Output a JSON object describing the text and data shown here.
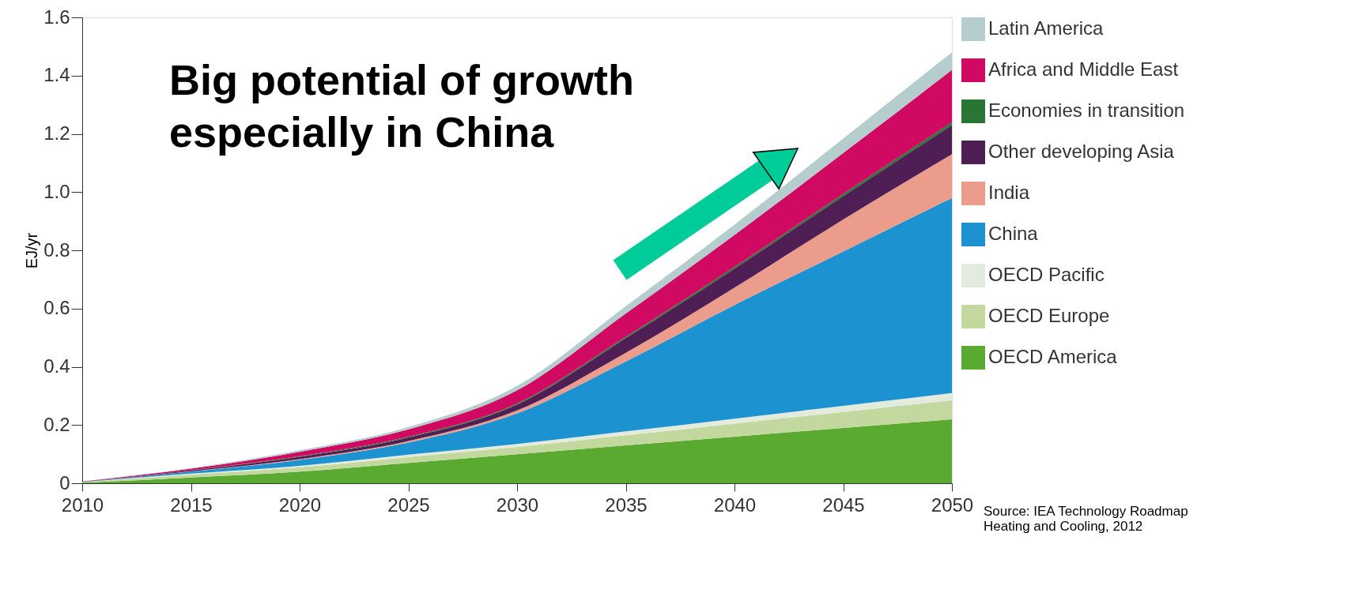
{
  "chart_data": {
    "type": "area",
    "stacked": true,
    "x": [
      2010,
      2015,
      2020,
      2025,
      2030,
      2035,
      2040,
      2045,
      2050
    ],
    "series": [
      {
        "name": "OECD America",
        "color": "#5aaa32",
        "values": [
          0.002,
          0.02,
          0.04,
          0.07,
          0.1,
          0.13,
          0.16,
          0.19,
          0.22
        ]
      },
      {
        "name": "OECD Europe",
        "color": "#c3d89e",
        "values": [
          0.002,
          0.01,
          0.015,
          0.02,
          0.025,
          0.035,
          0.045,
          0.055,
          0.065
        ]
      },
      {
        "name": "OECD Pacific",
        "color": "#e3ecdc",
        "values": [
          0,
          0.003,
          0.005,
          0.008,
          0.01,
          0.013,
          0.017,
          0.021,
          0.025
        ]
      },
      {
        "name": "China",
        "color": "#1c92d0",
        "values": [
          0.001,
          0.007,
          0.02,
          0.042,
          0.105,
          0.24,
          0.39,
          0.53,
          0.67
        ]
      },
      {
        "name": "India",
        "color": "#eb9c8a",
        "values": [
          0,
          0.001,
          0.003,
          0.005,
          0.01,
          0.03,
          0.06,
          0.11,
          0.15
        ]
      },
      {
        "name": "Other developing Asia",
        "color": "#4f1e54",
        "values": [
          0,
          0.003,
          0.008,
          0.012,
          0.02,
          0.05,
          0.065,
          0.08,
          0.1
        ]
      },
      {
        "name": "Economies in transition",
        "color": "#2a7534",
        "values": [
          0,
          0.001,
          0.002,
          0.003,
          0.004,
          0.005,
          0.006,
          0.008,
          0.01
        ]
      },
      {
        "name": "Africa and Middle East",
        "color": "#d00a63",
        "values": [
          0.001,
          0.005,
          0.015,
          0.025,
          0.045,
          0.08,
          0.11,
          0.14,
          0.18
        ]
      },
      {
        "name": "Latin America",
        "color": "#b5cdcd",
        "values": [
          0,
          0.002,
          0.005,
          0.008,
          0.015,
          0.025,
          0.035,
          0.05,
          0.06
        ]
      }
    ],
    "xlim": [
      2010,
      2050
    ],
    "xticks": [
      2010,
      2015,
      2020,
      2025,
      2030,
      2035,
      2040,
      2045,
      2050
    ],
    "ylim": [
      0,
      1.6
    ],
    "yticks": [
      {
        "value": 0,
        "label": "0"
      },
      {
        "value": 0.2,
        "label": "0.2"
      },
      {
        "value": 0.4,
        "label": "0.4"
      },
      {
        "value": 0.6,
        "label": "0.6"
      },
      {
        "value": 0.8,
        "label": "0.8"
      },
      {
        "value": 1.0,
        "label": "1.0"
      },
      {
        "value": 1.2,
        "label": "1.2"
      },
      {
        "value": 1.4,
        "label": "1.4"
      },
      {
        "value": 1.6,
        "label": "1.6"
      }
    ],
    "ylabel": "EJ/yr",
    "legend": "right",
    "grid": false,
    "annotations": [
      "Big potential of growth\nespecially in China",
      "Source: IEA Technology Roadmap\nHeating and Cooling, 2012"
    ]
  }
}
